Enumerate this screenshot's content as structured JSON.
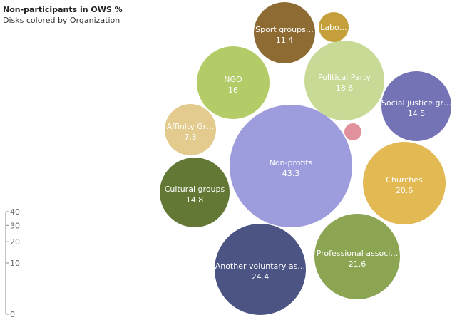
{
  "chart_data": {
    "type": "bubble",
    "title": "Non-participants in OWS %",
    "subtitle": "Disks colored by Organization",
    "size_scale": {
      "ticks": [
        0,
        10,
        20,
        30,
        40
      ],
      "max": 40
    },
    "bubbles": [
      {
        "label": "Non-profits",
        "value": 43.3,
        "color": "#9d9cdc"
      },
      {
        "label": "Another voluntary as…",
        "value": 24.4,
        "color": "#4b5483"
      },
      {
        "label": "Professional associ…",
        "value": 21.6,
        "color": "#8ba553"
      },
      {
        "label": "Churches",
        "value": 20.6,
        "color": "#e3b953"
      },
      {
        "label": "Political Party",
        "value": 18.6,
        "color": "#c8da96"
      },
      {
        "label": "NGO",
        "value": 16,
        "color": "#b4cc68"
      },
      {
        "label": "Cultural groups",
        "value": 14.8,
        "color": "#637835"
      },
      {
        "label": "Social justice gr…",
        "value": 14.5,
        "color": "#7373b5"
      },
      {
        "label": "Sport groups…",
        "value": 11.4,
        "color": "#8d6b33"
      },
      {
        "label": "Affinity Gr…",
        "value": 7.3,
        "color": "#e3cb8e"
      },
      {
        "label": "Labo…",
        "value": null,
        "color": "#c49f3a"
      },
      {
        "label": "",
        "value": null,
        "color": "#e0919b"
      }
    ]
  }
}
